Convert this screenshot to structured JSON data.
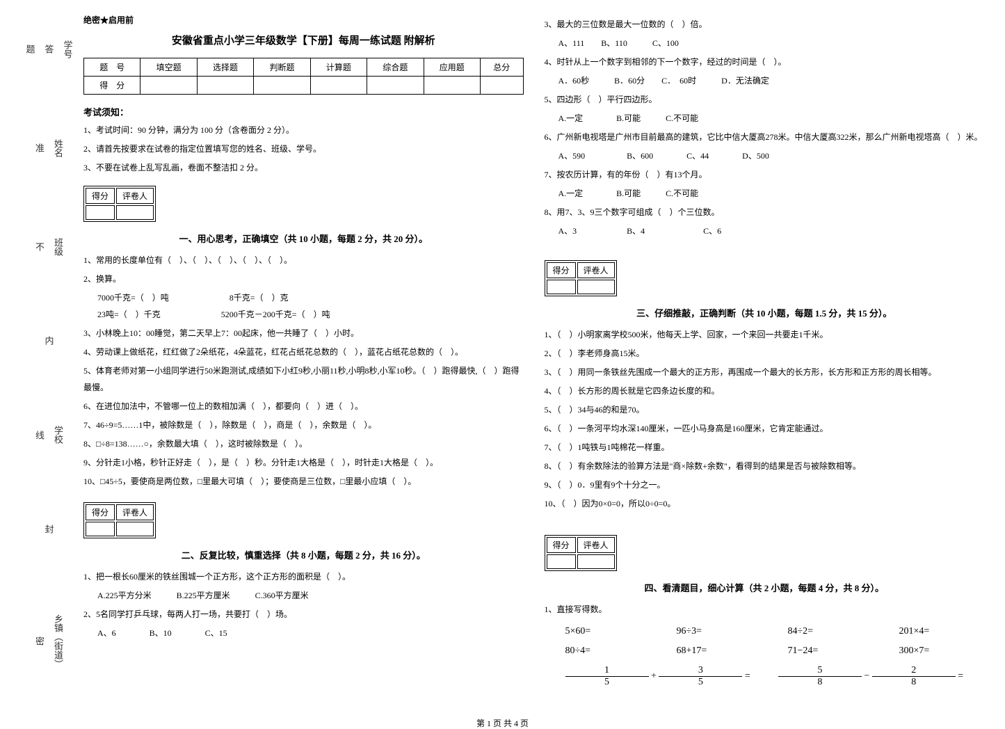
{
  "side": {
    "xiangzhen": "乡镇（街道）",
    "xuexiao": "学校",
    "banji": "班级",
    "xingming": "姓名",
    "xuehao": "学号",
    "mi": "密",
    "feng": "封",
    "xian": "线",
    "nei": "内",
    "bu": "不",
    "zhun": "准",
    "da": "答",
    "ti": "题"
  },
  "confidential": "绝密★启用前",
  "title": "安徽省重点小学三年级数学【下册】每周一练试题 附解析",
  "scoreTable": {
    "headers": [
      "题　号",
      "填空题",
      "选择题",
      "判断题",
      "计算题",
      "综合题",
      "应用题",
      "总分"
    ],
    "row": "得　分"
  },
  "noticeHead": "考试须知：",
  "notices": [
    "1、考试时间：90 分钟，满分为 100 分（含卷面分 2 分）。",
    "2、请首先按要求在试卷的指定位置填写您的姓名、班级、学号。",
    "3、不要在试卷上乱写乱画，卷面不整洁扣 2 分。"
  ],
  "scoreBox": {
    "score": "得分",
    "reviewer": "评卷人"
  },
  "sec1": {
    "title": "一、用心思考，正确填空（共 10 小题，每题 2 分，共 20 分）。",
    "q1": "1、常用的长度单位有（　）、（　）、（　）、（　）、（　）。",
    "q2": "2、换算。",
    "q2a": "7000千克=（　）吨",
    "q2b": "8千克=（　）克",
    "q2c": "23吨=（　）千克",
    "q2d": "5200千克－200千克=（　）吨",
    "q3": "3、小林晚上10：00睡觉，第二天早上7：00起床，他一共睡了（　）小时。",
    "q4": "4、劳动课上做纸花，红红做了2朵纸花，4朵蓝花，红花占纸花总数的（　），蓝花占纸花总数的（　）。",
    "q5": "5、体育老师对第一小组同学进行50米跑测试,成绩如下小红9秒,小丽11秒,小明8秒,小军10秒。（　）跑得最快,（　）跑得最慢。",
    "q6": "6、在进位加法中，不管哪一位上的数相加满（　），都要向（　）进（　）。",
    "q7": "7、46÷9=5……1中，被除数是（　），除数是（　），商是（　），余数是（　）。",
    "q8": "8、□÷8=138……○，余数最大填（　），这时被除数是（　）。",
    "q9": "9、分针走1小格，秒针正好走（　），是（　）秒。分针走1大格是（　），时针走1大格是（　）。",
    "q10": "10、□45÷5，要使商是两位数，□里最大可填（　）；要使商是三位数，□里最小应填（　）。"
  },
  "sec2": {
    "title": "二、反复比较，慎重选择（共 8 小题，每题 2 分，共 16 分）。",
    "q1": "1、把一根长60厘米的铁丝围城一个正方形，这个正方形的面积是（　）。",
    "q1opts": "A.225平方分米　　　B.225平方厘米　　　C.360平方厘米",
    "q2": "2、5名同学打乒乓球，每两人打一场，共要打（　）场。",
    "q2opts": "A、6　　　　B、10　　　　C、15",
    "q3": "3、最大的三位数是最大一位数的（　）倍。",
    "q3opts": "A、111　　B、110　　　C、100",
    "q4": "4、时针从上一个数字到相邻的下一个数字，经过的时间是（　）。",
    "q4opts": "A．60秒　　　B．60分　　C．　60时　　　D．无法确定",
    "q5": "5、四边形（　）平行四边形。",
    "q5opts": "A.一定　　　　B.可能　　　C.不可能",
    "q6": "6、广州新电视塔是广州市目前最高的建筑，它比中信大厦高278米。中信大厦高322米，那么广州新电视塔高（　）米。",
    "q6opts": "A、590　　　　　B、600　　　　C、44　　　　D、500",
    "q7": "7、按农历计算，有的年份（　）有13个月。",
    "q7opts": "A.一定　　　　B.可能　　　C.不可能",
    "q8": "8、用7、3、9三个数字可组成（　）个三位数。",
    "q8opts": "A、3　　　　　　B、4　　　　　　　C、6"
  },
  "sec3": {
    "title": "三、仔细推敲，正确判断（共 10 小题，每题 1.5 分，共 15 分）。",
    "q1": "1、（　）小明家离学校500米，他每天上学、回家，一个来回一共要走1千米。",
    "q2": "2、（　）李老师身高15米。",
    "q3": "3、（　）用同一条铁丝先围成一个最大的正方形，再围成一个最大的长方形，长方形和正方形的周长相等。",
    "q4": "4、（　）长方形的周长就是它四条边长度的和。",
    "q5": "5、（　）34与46的和是70。",
    "q6": "6、（　）一条河平均水深140厘米，一匹小马身高是160厘米，它肯定能通过。",
    "q7": "7、（　）1吨铁与1吨棉花一样重。",
    "q8": "8、（　）有余数除法的验算方法是\"商×除数+余数\"，看得到的结果是否与被除数相等。",
    "q9": "9、（　）0．9里有9个十分之一。",
    "q10": "10、（　）因为0×0=0，所以0÷0=0。"
  },
  "sec4": {
    "title": "四、看清题目，细心计算（共 2 小题，每题 4 分，共 8 分）。",
    "q1": "1、直接写得数。",
    "calc": {
      "r1c1": "5×60=",
      "r1c2": "96÷3=",
      "r1c3": "84÷2=",
      "r1c4": "201×4=",
      "r2c1": "80÷4=",
      "r2c2": "68+17=",
      "r2c3": "71−24=",
      "r2c4": "300×7="
    },
    "frac1": {
      "n1": "1",
      "d1": "5",
      "op": "+",
      "n2": "3",
      "d2": "5",
      "eq": "="
    },
    "frac2": {
      "n1": "5",
      "d1": "8",
      "op": "−",
      "n2": "2",
      "d2": "8",
      "eq": "="
    }
  },
  "footer": "第 1 页 共 4 页"
}
